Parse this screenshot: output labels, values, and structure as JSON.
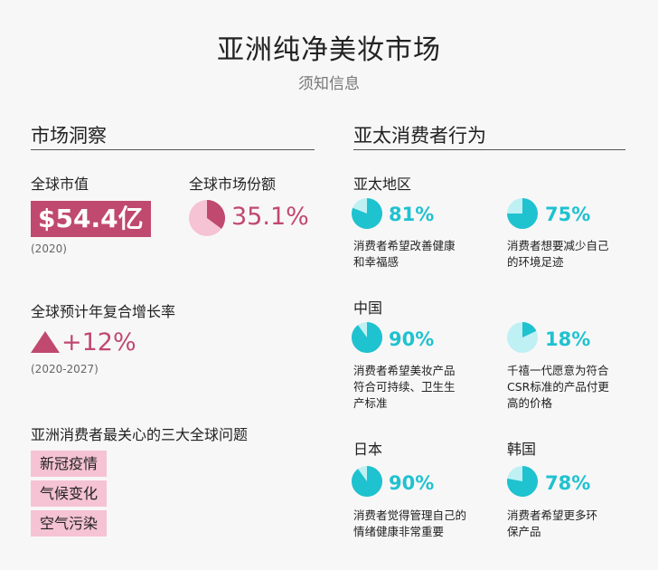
{
  "header": {
    "title": "亚洲纯净美妆市场",
    "subtitle": "须知信息"
  },
  "left": {
    "section_title": "市场洞察",
    "market_value_label": "全球市值",
    "market_value": "$54.4亿",
    "market_value_year": "(2020)",
    "share_label": "全球市场份额",
    "share_value": "35.1%",
    "share_fraction": 0.351,
    "cagr_label": "全球预计年复合增长率",
    "cagr_value": "+12%",
    "cagr_years": "(2020-2027)",
    "concerns_label": "亚洲消费者最关心的三大全球问题",
    "concerns": [
      "新冠疫情",
      "气候变化",
      "空气污染"
    ]
  },
  "right": {
    "section_title": "亚太消费者行为",
    "groups": [
      {
        "region": "亚太地区",
        "stats": [
          {
            "value": "81%",
            "fraction": 0.81,
            "desc_lines": [
              "消费者希望改善健康",
              "和幸福感"
            ]
          },
          {
            "value": "75%",
            "fraction": 0.75,
            "desc_lines": [
              "消费者想要减少自己",
              "的环境足迹"
            ]
          }
        ]
      },
      {
        "region": "中国",
        "stats": [
          {
            "value": "90%",
            "fraction": 0.9,
            "desc_lines": [
              "消费者希望美妆产品",
              "符合可持续、卫生生",
              "产标准"
            ]
          },
          {
            "value": "18%",
            "fraction": 0.18,
            "desc_lines": [
              "千禧一代愿意为符合",
              "CSR标准的产品付更",
              "高的价格"
            ]
          }
        ]
      },
      {
        "region": "日本",
        "stats": [
          {
            "value": "90%",
            "fraction": 0.9,
            "desc_lines": [
              "消费者觉得管理自己的",
              "情绪健康非常重要"
            ]
          }
        ]
      },
      {
        "region": "韩国",
        "stats": [
          {
            "value": "78%",
            "fraction": 0.78,
            "desc_lines": [
              "消费者希望更多环",
              "保产品"
            ]
          }
        ]
      }
    ]
  },
  "colors": {
    "pink_accent": "#c0496f",
    "pink_light": "#f5c3d3",
    "teal": "#1fc2cf",
    "teal_light": "#bff0f4"
  }
}
